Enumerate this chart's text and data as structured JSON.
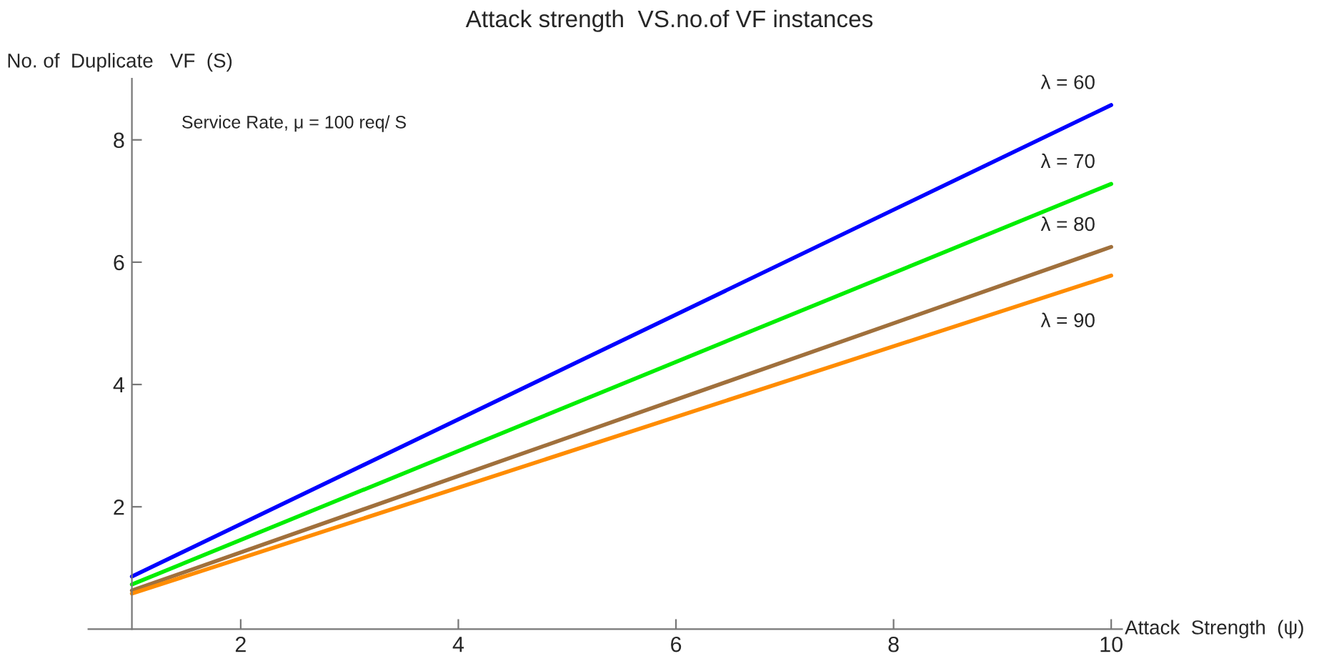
{
  "chart_data": {
    "type": "line",
    "title": "Attack strength  VS.no.of VF instances",
    "xlabel": "Attack  Strength  (ψ)",
    "ylabel": "No. of  Duplicate   VF  (S)",
    "annotations": [
      "Service Rate, μ = 100 req/ S"
    ],
    "x": [
      1,
      10
    ],
    "series": [
      {
        "name": "λ = 60",
        "color": "#0000ff",
        "values": [
          0.86,
          8.57
        ]
      },
      {
        "name": "λ = 70",
        "color": "#00ee00",
        "values": [
          0.73,
          7.28
        ]
      },
      {
        "name": "λ = 80",
        "color": "#a0703c",
        "values": [
          0.63,
          6.25
        ]
      },
      {
        "name": "λ = 90",
        "color": "#ff8c00",
        "values": [
          0.58,
          5.78
        ]
      }
    ],
    "xlim": [
      0.6,
      10.1
    ],
    "ylim": [
      0,
      9
    ],
    "xticks": [
      2,
      4,
      6,
      8,
      10
    ],
    "yticks": [
      2,
      4,
      6,
      8
    ],
    "grid": false,
    "legend": false,
    "marker": "none",
    "line_style": "solid"
  }
}
